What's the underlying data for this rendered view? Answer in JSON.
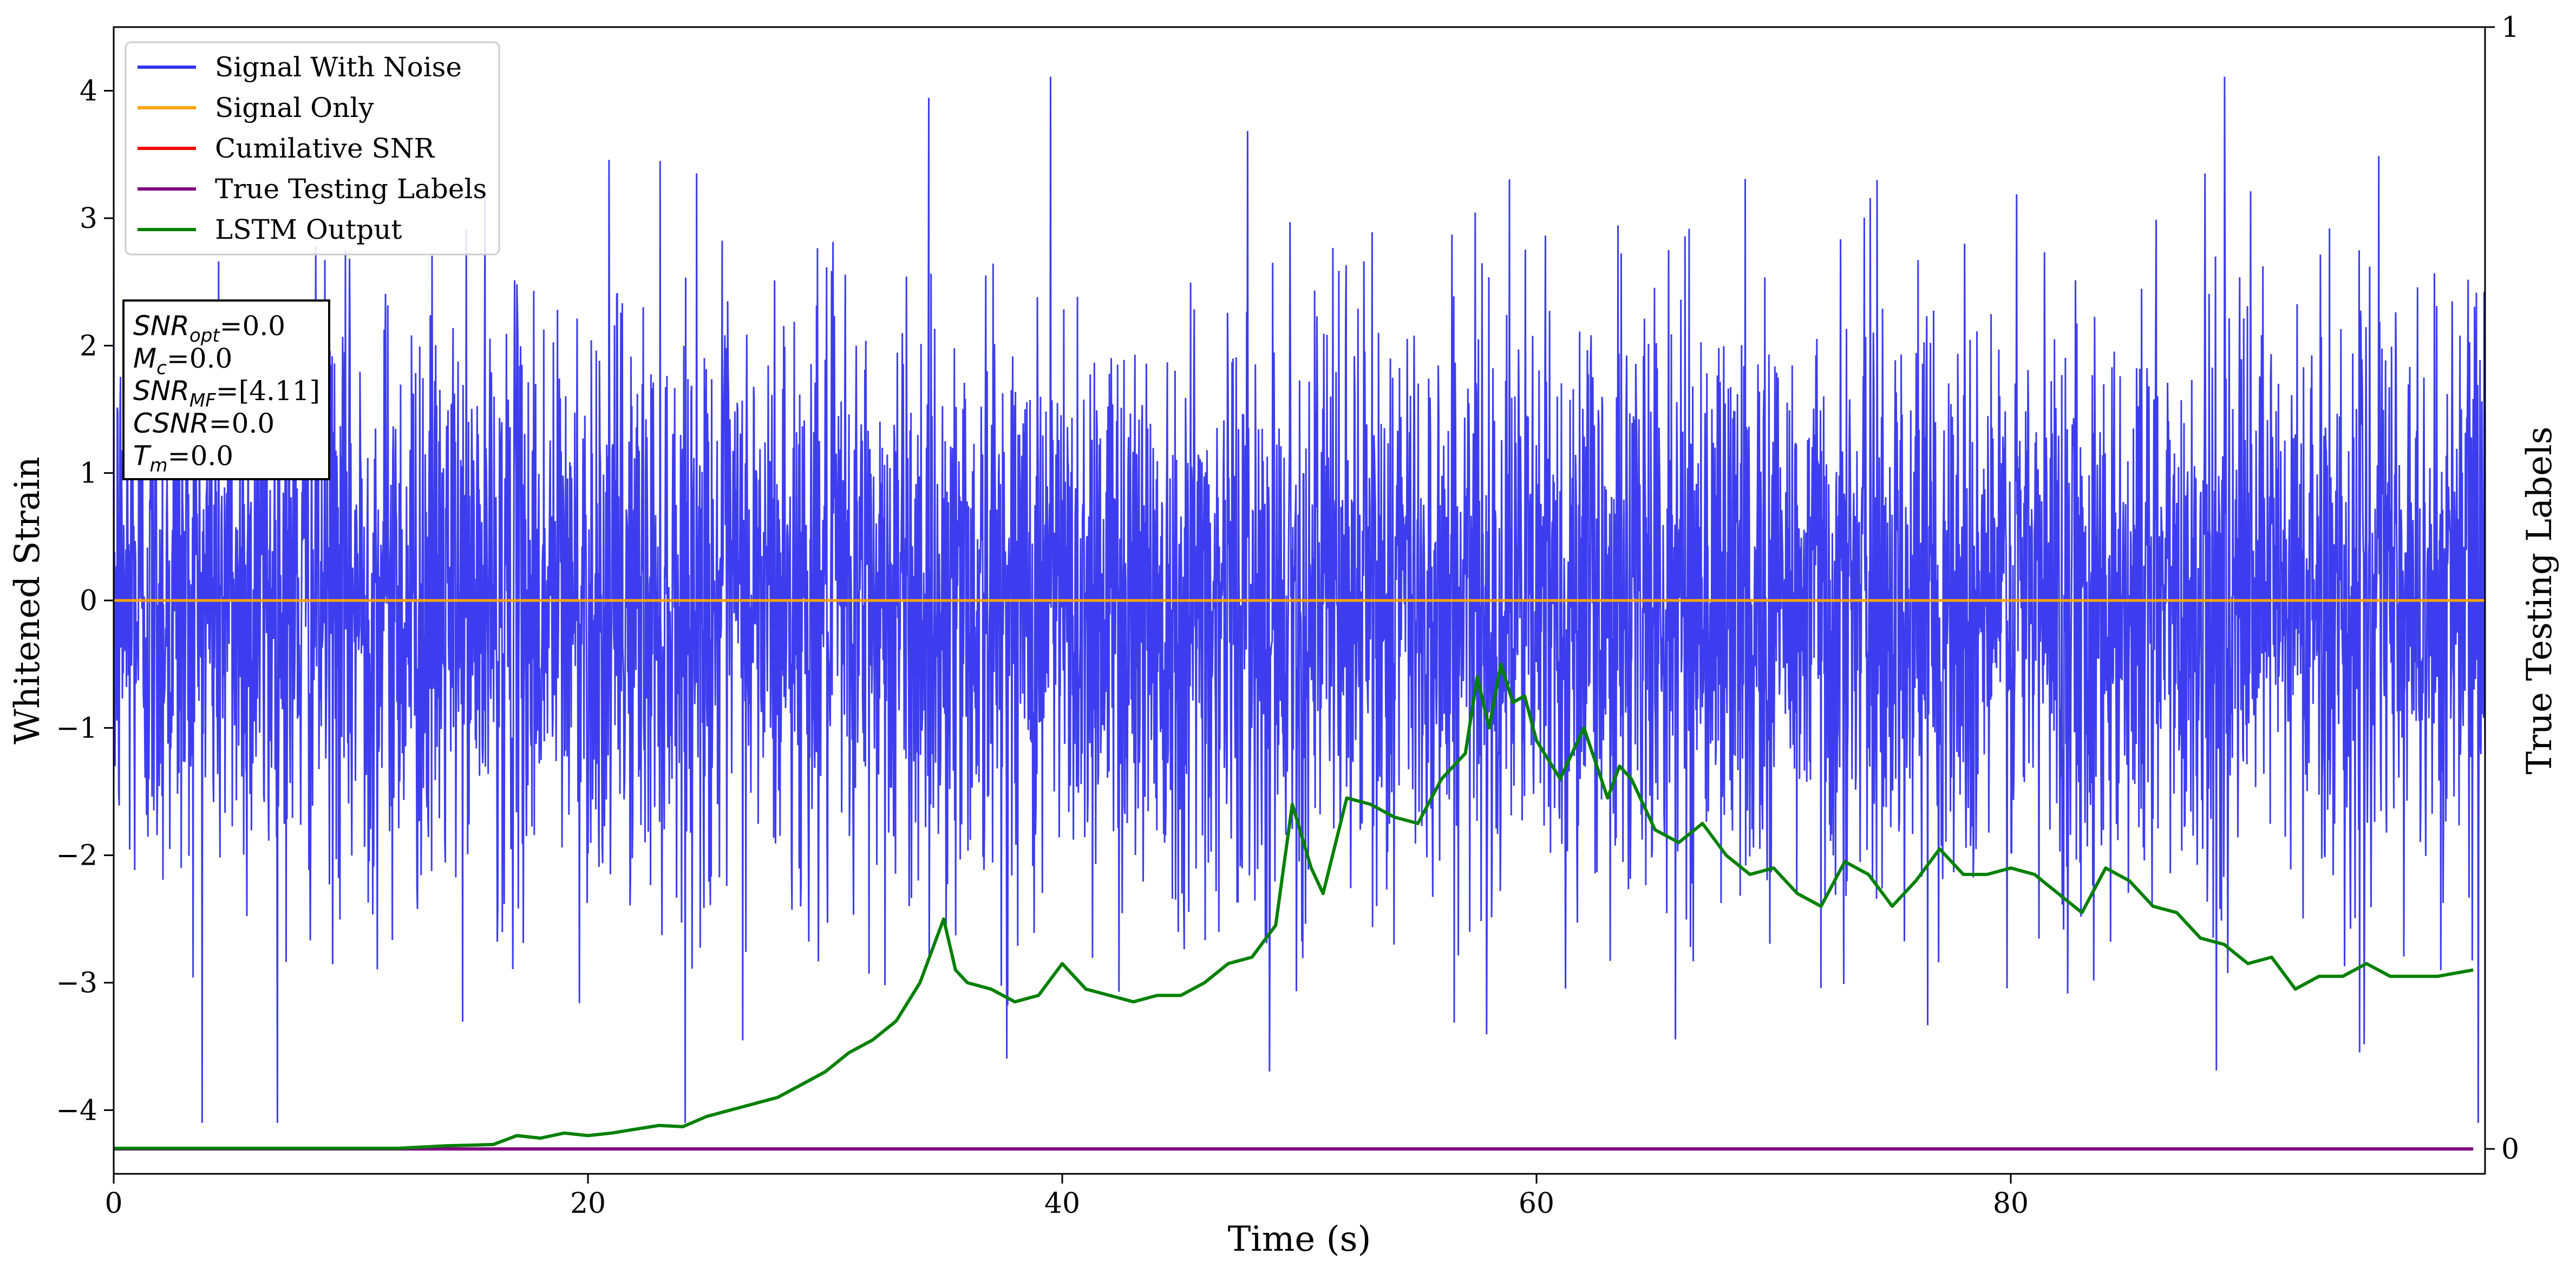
{
  "chart_data": {
    "type": "line",
    "xlabel": "Time (s)",
    "ylabel": "Whitened Strain",
    "y2label": "True Testing Labels",
    "xlim": [
      0,
      100
    ],
    "ylim": [
      -4.5,
      4.5
    ],
    "y2lim": [
      0,
      1
    ],
    "x_ticks": [
      0,
      20,
      40,
      60,
      80
    ],
    "x_tick_labels": [
      "0",
      "20",
      "40",
      "60",
      "80"
    ],
    "y_ticks": [
      4,
      3,
      2,
      1,
      0,
      -1,
      -2,
      -3,
      -4
    ],
    "y_tick_labels": [
      "4",
      "3",
      "2",
      "1",
      "0",
      "−1",
      "−2",
      "−3",
      "−4"
    ],
    "y2_ticks": [
      1,
      0
    ],
    "y2_tick_labels": [
      "1",
      "0"
    ],
    "legend_position": "upper-left",
    "series": [
      {
        "name": "Signal With Noise",
        "color": "#3333ee",
        "axis": "left",
        "description": "dense gaussian-like noise",
        "x_range": [
          0,
          100
        ],
        "approx_std": 1.0,
        "extremes": {
          "max": 4.11,
          "min": -4.1
        }
      },
      {
        "name": "Signal Only",
        "color": "#ffa500",
        "axis": "left",
        "x": [
          0,
          100
        ],
        "y": [
          0,
          0
        ]
      },
      {
        "name": "Cumilative SNR",
        "color": "#ff0000",
        "axis": "left",
        "x": [],
        "y": []
      },
      {
        "name": "True Testing Labels",
        "color": "#800080",
        "axis": "right",
        "x": [
          0,
          99.5
        ],
        "y": [
          0,
          0
        ]
      },
      {
        "name": "LSTM Output",
        "color": "#008000",
        "axis": "left",
        "x": [
          0,
          12,
          14,
          16,
          17,
          18,
          19,
          20,
          21,
          22,
          23,
          24,
          25,
          26,
          27,
          28,
          29,
          30,
          31,
          32,
          33,
          34,
          35,
          35.5,
          36,
          37,
          38,
          39,
          40,
          41,
          42,
          43,
          44,
          45,
          46,
          47,
          48,
          49,
          49.7,
          50.5,
          51,
          52,
          53,
          54,
          55,
          56,
          57,
          57.5,
          58,
          58.5,
          59,
          59.5,
          60,
          61,
          62,
          63,
          63.5,
          64,
          65,
          66,
          67,
          68,
          69,
          70,
          71,
          72,
          73,
          74,
          75,
          76,
          77,
          78,
          79,
          80,
          81,
          82,
          83,
          84,
          85,
          86,
          87,
          88,
          89,
          90,
          91,
          92,
          93,
          94,
          95,
          96,
          97,
          98,
          99.5
        ],
        "y": [
          -4.3,
          -4.3,
          -4.28,
          -4.27,
          -4.2,
          -4.22,
          -4.18,
          -4.2,
          -4.18,
          -4.15,
          -4.12,
          -4.13,
          -4.05,
          -4.0,
          -3.95,
          -3.9,
          -3.8,
          -3.7,
          -3.55,
          -3.45,
          -3.3,
          -3.0,
          -2.5,
          -2.9,
          -3.0,
          -3.05,
          -3.15,
          -3.1,
          -2.85,
          -3.05,
          -3.1,
          -3.15,
          -3.1,
          -3.1,
          -3.0,
          -2.85,
          -2.8,
          -2.55,
          -1.6,
          -2.1,
          -2.3,
          -1.55,
          -1.6,
          -1.7,
          -1.75,
          -1.4,
          -1.2,
          -0.6,
          -1.0,
          -0.5,
          -0.8,
          -0.75,
          -1.1,
          -1.4,
          -1.0,
          -1.55,
          -1.3,
          -1.4,
          -1.8,
          -1.9,
          -1.75,
          -2.0,
          -2.15,
          -2.1,
          -2.3,
          -2.4,
          -2.05,
          -2.15,
          -2.4,
          -2.2,
          -1.95,
          -2.15,
          -2.15,
          -2.1,
          -2.15,
          -2.3,
          -2.45,
          -2.1,
          -2.2,
          -2.4,
          -2.45,
          -2.65,
          -2.7,
          -2.85,
          -2.8,
          -3.05,
          -2.95,
          -2.95,
          -2.85,
          -2.95,
          -2.95,
          -2.95,
          -2.9
        ]
      }
    ],
    "annotation_lines": [
      {
        "label": "SNR",
        "sub": "opt",
        "value": "=0.0"
      },
      {
        "label": "M",
        "sub": "c",
        "value": "=0.0"
      },
      {
        "label": "SNR",
        "sub": "MF",
        "value": "=[4.11]"
      },
      {
        "label": "CSNR",
        "sub": "",
        "value": "=0.0"
      },
      {
        "label": "T",
        "sub": "m",
        "value": "=0.0"
      }
    ]
  }
}
